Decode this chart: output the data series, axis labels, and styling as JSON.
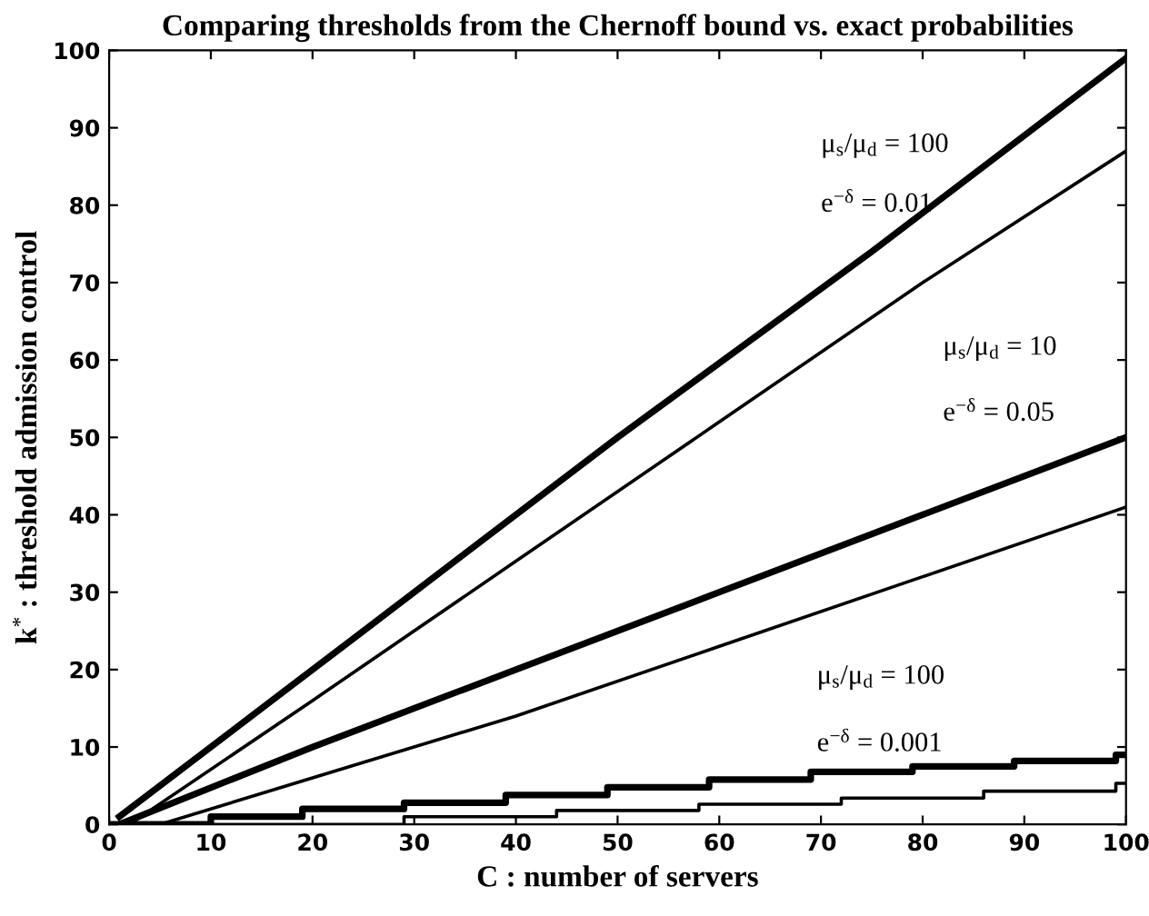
{
  "chart_data": {
    "type": "line",
    "title": "Comparing thresholds from the Chernoff bound vs. exact probabilities",
    "xlabel": "C : number of servers",
    "ylabel": "k$^{*}$ : threshold admission control",
    "xlim": [
      0,
      100
    ],
    "ylim": [
      0,
      100
    ],
    "xticks": [
      0,
      10,
      20,
      30,
      40,
      50,
      60,
      70,
      80,
      90,
      100
    ],
    "yticks": [
      0,
      10,
      20,
      30,
      40,
      50,
      60,
      70,
      80,
      90,
      100
    ],
    "grid": false,
    "series": [
      {
        "color": "#000000",
        "x": [
          1,
          25,
          50,
          75,
          100
        ],
        "values": [
          1,
          25,
          50,
          74,
          99
        ]
      },
      {
        "color": "#000000",
        "x": [
          2,
          20,
          40,
          60,
          80,
          100
        ],
        "values": [
          0,
          16,
          34,
          52,
          70,
          87
        ]
      },
      {
        "color": "#000000",
        "x": [
          1,
          20,
          40,
          60,
          80,
          100
        ],
        "values": [
          0,
          10,
          20,
          30,
          40,
          50
        ]
      },
      {
        "color": "#000000",
        "x": [
          5,
          20,
          40,
          60,
          80,
          100
        ],
        "values": [
          0,
          6,
          14,
          23,
          32,
          41
        ]
      },
      {
        "type": "step",
        "color": "#000000",
        "x": [
          0,
          10,
          19,
          29,
          39,
          49,
          59,
          69,
          79,
          89,
          99,
          100
        ],
        "values": [
          0,
          1,
          2,
          2.8,
          3.8,
          4.8,
          5.8,
          6.8,
          7.5,
          8.2,
          9,
          9
        ]
      },
      {
        "type": "step",
        "color": "#000000",
        "x": [
          0,
          29,
          44,
          58,
          72,
          86,
          99,
          100
        ],
        "values": [
          0,
          1,
          1.8,
          2.6,
          3.4,
          4.3,
          5.3,
          5.3
        ]
      }
    ],
    "annotations": [
      "μ$_{s}$/μ$_{d}$ = 100",
      "e$^{−δ}$ = 0.01",
      "μ$_{s}$/μ$_{d}$ = 10",
      "e$^{−δ}$ = 0.05",
      "μ$_{s}$/μ$_{d}$ = 100",
      "e$^{−δ}$ = 0.001"
    ]
  }
}
